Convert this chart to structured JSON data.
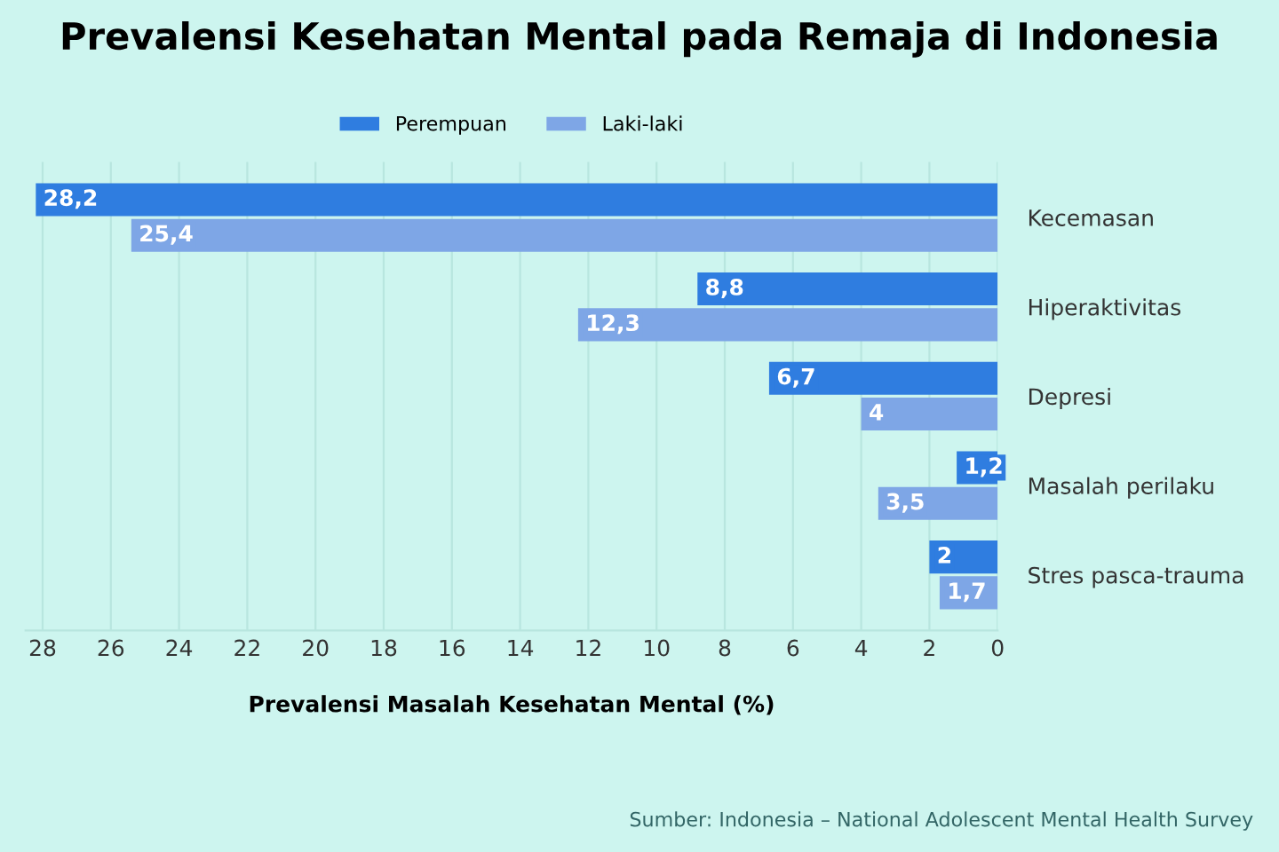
{
  "chart_data": {
    "type": "bar",
    "orientation": "horizontal",
    "title": "Prevalensi Kesehatan Mental pada Remaja di Indonesia",
    "xlabel": "Prevalensi Masalah Kesehatan Mental (%)",
    "categories": [
      "Kecemasan",
      "Hiperaktivitas",
      "Depresi",
      "Masalah perilaku",
      "Stres pasca-trauma"
    ],
    "series": [
      {
        "name": "Perempuan",
        "color": "#2f7de0",
        "values": [
          28.2,
          8.8,
          6.7,
          1.2,
          2
        ],
        "value_labels": [
          "28,2",
          "8,8",
          "6,7",
          "1,2",
          "2"
        ]
      },
      {
        "name": "Laki-laki",
        "color": "#7ea6e6",
        "values": [
          25.4,
          12.3,
          4,
          3.5,
          1.7
        ],
        "value_labels": [
          "25,4",
          "12,3",
          "4",
          "3,5",
          "1,7"
        ]
      }
    ],
    "xlim": [
      28.5,
      0
    ],
    "xticks": [
      0,
      2,
      4,
      6,
      8,
      10,
      12,
      14,
      16,
      18,
      20,
      22,
      24,
      26,
      28
    ],
    "grid": "x",
    "legend": "top",
    "annotations": [
      "Sumber: Indonesia – National Adolescent Mental Health Survey"
    ]
  }
}
